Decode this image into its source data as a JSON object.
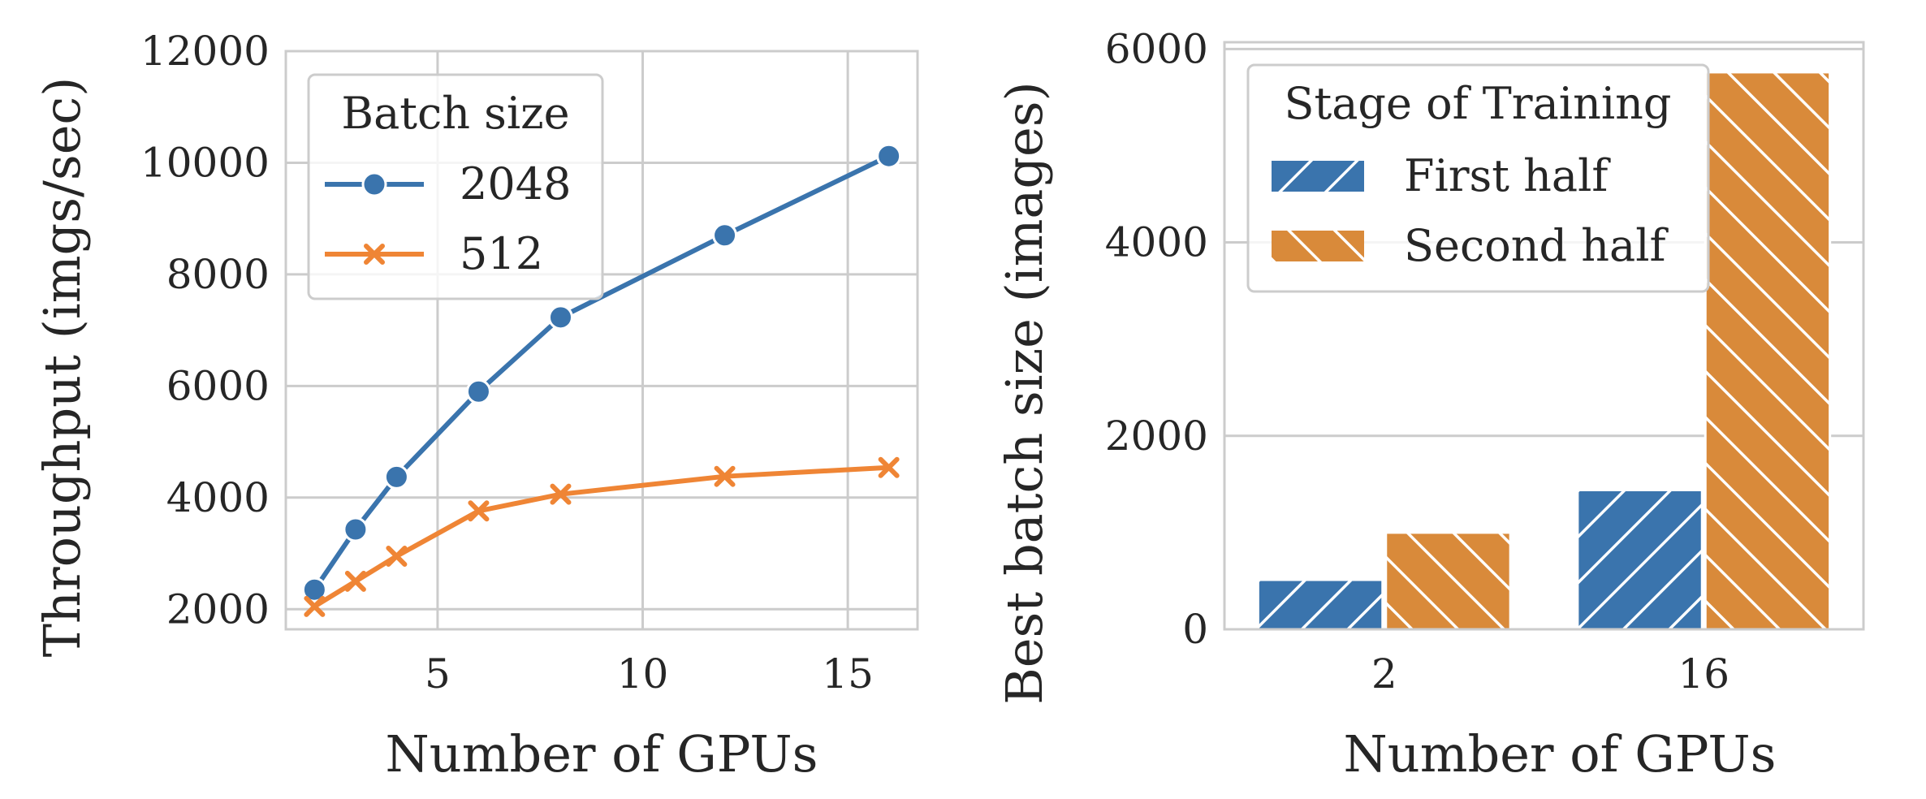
{
  "chart_data": [
    {
      "type": "line",
      "xlabel": "Number of GPUs",
      "ylabel": "Throughput (imgs/sec)",
      "xlim": [
        1.3,
        16.7
      ],
      "ylim": [
        1640,
        12000
      ],
      "xticks": [
        "5",
        "10",
        "15"
      ],
      "yticks": [
        "2000",
        "4000",
        "6000",
        "8000",
        "10000",
        "12000"
      ],
      "grid": true,
      "legend": {
        "title": "Batch size",
        "placement": "top-left"
      },
      "series": [
        {
          "name": "2048",
          "color": "#3a74ad",
          "marker": "circle",
          "x": [
            2,
            3,
            4,
            6,
            8,
            12,
            16
          ],
          "y": [
            2350,
            3430,
            4370,
            5900,
            7230,
            8700,
            10120
          ]
        },
        {
          "name": "512",
          "color": "#ef8535",
          "marker": "x",
          "x": [
            2,
            3,
            4,
            6,
            8,
            12,
            16
          ],
          "y": [
            2050,
            2500,
            2950,
            3760,
            4060,
            4380,
            4540
          ]
        }
      ]
    },
    {
      "type": "bar",
      "xlabel": "Number of GPUs",
      "ylabel": "Best batch size (images)",
      "categories": [
        "2",
        "16"
      ],
      "ylim": [
        0,
        6070
      ],
      "yticks": [
        "0",
        "2000",
        "4000",
        "6000"
      ],
      "grid": true,
      "legend": {
        "title": "Stage of Training",
        "placement": "top-left"
      },
      "series": [
        {
          "name": "First half",
          "color": "#3a74ad",
          "hatch": "/",
          "values": [
            512,
            1440
          ]
        },
        {
          "name": "Second half",
          "color": "#d98a3a",
          "hatch": "\\",
          "values": [
            1000,
            5760
          ]
        }
      ]
    }
  ]
}
